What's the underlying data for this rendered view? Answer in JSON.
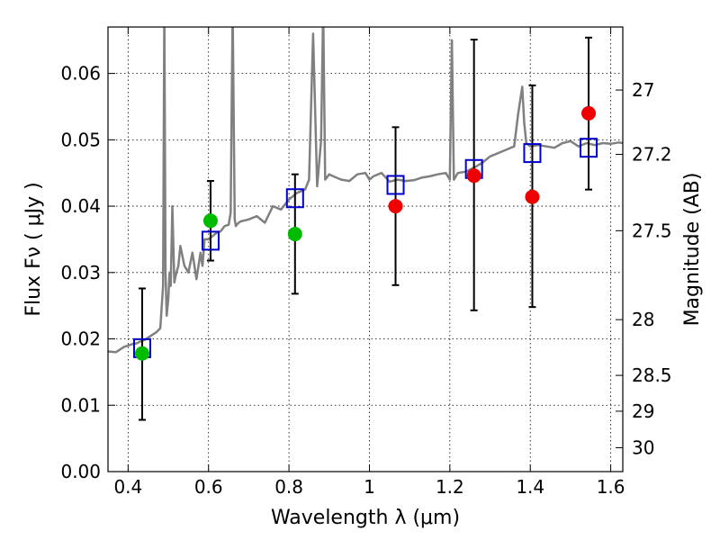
{
  "chart_data": {
    "type": "scatter",
    "title": "",
    "xlabel": "Wavelength  λ (μm)",
    "ylabel": "Flux  Fν  ( μJy )",
    "ylabel_right": "Magnitude (AB)",
    "xlim": [
      0.35,
      1.63
    ],
    "ylim": [
      0.0,
      0.067
    ],
    "grid": true,
    "x_ticks": [
      0.4,
      0.6,
      0.8,
      1.0,
      1.2,
      1.4,
      1.6
    ],
    "x_tick_labels": [
      "0.4",
      "0.6",
      "0.8",
      "1",
      "1.2",
      "1.4",
      "1.6"
    ],
    "y_ticks": [
      0.0,
      0.01,
      0.02,
      0.03,
      0.04,
      0.05,
      0.06
    ],
    "y_tick_labels": [
      "0.00",
      "0.01",
      "0.02",
      "0.03",
      "0.04",
      "0.05",
      "0.06"
    ],
    "right_ticks": [
      {
        "label": "27",
        "flux": 0.0575
      },
      {
        "label": "27.2",
        "flux": 0.0478
      },
      {
        "label": "27.5",
        "flux": 0.0363
      },
      {
        "label": "28",
        "flux": 0.0229
      },
      {
        "label": "28.5",
        "flux": 0.0145
      },
      {
        "label": "29",
        "flux": 0.0091
      },
      {
        "label": "30",
        "flux": 0.0036
      }
    ],
    "colors": {
      "spectrum": "#808080",
      "model_box": "#0000cc",
      "green": "#00bb00",
      "red": "#ee0000",
      "errorbar": "#000000"
    },
    "spectrum": {
      "x": [
        0.35,
        0.37,
        0.38,
        0.39,
        0.4,
        0.41,
        0.42,
        0.43,
        0.44,
        0.45,
        0.46,
        0.47,
        0.48,
        0.487,
        0.49,
        0.493,
        0.496,
        0.5,
        0.503,
        0.506,
        0.51,
        0.515,
        0.52,
        0.525,
        0.53,
        0.54,
        0.55,
        0.56,
        0.57,
        0.58,
        0.585,
        0.59,
        0.6,
        0.61,
        0.62,
        0.63,
        0.64,
        0.65,
        0.655,
        0.66,
        0.665,
        0.668,
        0.67,
        0.675,
        0.68,
        0.7,
        0.72,
        0.74,
        0.76,
        0.78,
        0.8,
        0.82,
        0.84,
        0.85,
        0.86,
        0.87,
        0.88,
        0.885,
        0.89,
        0.9,
        0.91,
        0.93,
        0.95,
        0.97,
        0.99,
        1.0,
        1.01,
        1.03,
        1.05,
        1.07,
        1.09,
        1.11,
        1.13,
        1.15,
        1.17,
        1.19,
        1.2,
        1.205,
        1.21,
        1.22,
        1.24,
        1.26,
        1.28,
        1.3,
        1.32,
        1.34,
        1.36,
        1.37,
        1.38,
        1.385,
        1.39,
        1.4,
        1.42,
        1.44,
        1.46,
        1.48,
        1.5,
        1.52,
        1.54,
        1.56,
        1.58,
        1.6,
        1.62,
        1.63
      ],
      "y": [
        0.0181,
        0.018,
        0.0184,
        0.0188,
        0.019,
        0.0192,
        0.0193,
        0.0196,
        0.0198,
        0.0202,
        0.0206,
        0.021,
        0.0216,
        0.028,
        0.07,
        0.03,
        0.0235,
        0.026,
        0.03,
        0.028,
        0.04,
        0.0285,
        0.03,
        0.031,
        0.034,
        0.031,
        0.03,
        0.033,
        0.029,
        0.033,
        0.031,
        0.035,
        0.035,
        0.0355,
        0.036,
        0.0362,
        0.037,
        0.0372,
        0.039,
        0.07,
        0.038,
        0.037,
        0.0372,
        0.0375,
        0.0377,
        0.038,
        0.0385,
        0.0375,
        0.04,
        0.0395,
        0.041,
        0.042,
        0.0425,
        0.044,
        0.066,
        0.043,
        0.05,
        0.07,
        0.044,
        0.0448,
        0.0445,
        0.044,
        0.0438,
        0.0448,
        0.045,
        0.044,
        0.0445,
        0.045,
        0.0437,
        0.044,
        0.0438,
        0.0439,
        0.0443,
        0.0445,
        0.0448,
        0.045,
        0.044,
        0.065,
        0.044,
        0.045,
        0.0452,
        0.0458,
        0.0465,
        0.0475,
        0.048,
        0.0485,
        0.049,
        0.054,
        0.058,
        0.0525,
        0.0495,
        0.049,
        0.0492,
        0.049,
        0.0488,
        0.0495,
        0.0498,
        0.049,
        0.0495,
        0.0492,
        0.0495,
        0.0494,
        0.0496,
        0.0495
      ]
    },
    "model_points": {
      "x": [
        0.435,
        0.605,
        0.815,
        1.065,
        1.26,
        1.405,
        1.545
      ],
      "y": [
        0.0186,
        0.0348,
        0.0412,
        0.0432,
        0.0456,
        0.048,
        0.0488
      ]
    },
    "observed_points": [
      {
        "x": 0.435,
        "y": 0.0178,
        "yerr_low": 0.0078,
        "yerr_high": 0.0276,
        "color": "green"
      },
      {
        "x": 0.605,
        "y": 0.0378,
        "yerr_low": 0.0318,
        "yerr_high": 0.0438,
        "color": "green"
      },
      {
        "x": 0.815,
        "y": 0.0358,
        "yerr_low": 0.0268,
        "yerr_high": 0.0448,
        "color": "green"
      },
      {
        "x": 1.065,
        "y": 0.04,
        "yerr_low": 0.0281,
        "yerr_high": 0.0519,
        "color": "red"
      },
      {
        "x": 1.26,
        "y": 0.0446,
        "yerr_low": 0.0243,
        "yerr_high": 0.0651,
        "color": "red"
      },
      {
        "x": 1.405,
        "y": 0.0414,
        "yerr_low": 0.0248,
        "yerr_high": 0.0582,
        "color": "red"
      },
      {
        "x": 1.545,
        "y": 0.054,
        "yerr_low": 0.0425,
        "yerr_high": 0.0654,
        "color": "red"
      }
    ]
  }
}
